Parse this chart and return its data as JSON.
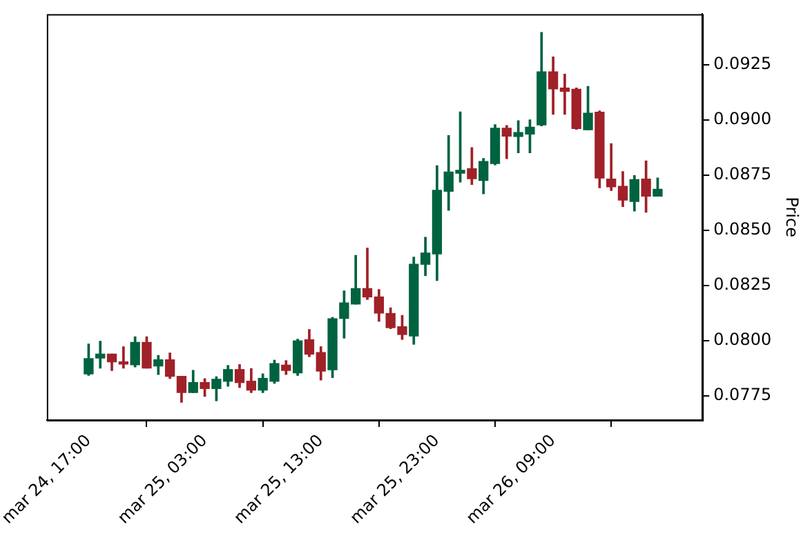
{
  "chart_data": {
    "type": "candlestick",
    "ylabel": "Price",
    "categories": [
      "mar 24, 17:00",
      null,
      null,
      null,
      null,
      null,
      null,
      null,
      null,
      null,
      "mar 25, 03:00",
      null,
      null,
      null,
      null,
      null,
      null,
      null,
      null,
      null,
      "mar 25, 13:00",
      null,
      null,
      null,
      null,
      null,
      null,
      null,
      null,
      null,
      "mar 25, 23:00",
      null,
      null,
      null,
      null,
      null,
      null,
      null,
      null,
      null,
      "mar 26, 09:00",
      null,
      null,
      null,
      null,
      null,
      null,
      null,
      null,
      null
    ],
    "ohlc": [
      [
        0.07849,
        0.07984,
        0.07843,
        0.07919
      ],
      [
        0.07921,
        0.07997,
        0.07876,
        0.07939
      ],
      [
        0.07939,
        0.07939,
        0.07865,
        0.07904
      ],
      [
        0.07904,
        0.07972,
        0.07876,
        0.07894
      ],
      [
        0.07891,
        0.08017,
        0.07881,
        0.07992
      ],
      [
        0.07992,
        0.08017,
        0.07876,
        0.07876
      ],
      [
        0.07885,
        0.07933,
        0.07847,
        0.07913
      ],
      [
        0.07913,
        0.07944,
        0.07829,
        0.07838
      ],
      [
        0.07838,
        0.07838,
        0.07721,
        0.07765
      ],
      [
        0.07765,
        0.07865,
        0.07765,
        0.0781
      ],
      [
        0.0781,
        0.07827,
        0.07748,
        0.07783
      ],
      [
        0.07783,
        0.07836,
        0.07728,
        0.07825
      ],
      [
        0.07816,
        0.07887,
        0.07794,
        0.07869
      ],
      [
        0.07869,
        0.07891,
        0.07788,
        0.0781
      ],
      [
        0.07816,
        0.07873,
        0.07765,
        0.07776
      ],
      [
        0.07776,
        0.07849,
        0.07765,
        0.07829
      ],
      [
        0.07816,
        0.07911,
        0.07807,
        0.07896
      ],
      [
        0.07889,
        0.07909,
        0.07847,
        0.07865
      ],
      [
        0.07854,
        0.08006,
        0.07843,
        0.07999
      ],
      [
        0.08004,
        0.0805,
        0.07928,
        0.07939
      ],
      [
        0.07946,
        0.07972,
        0.07822,
        0.07862
      ],
      [
        0.07868,
        0.08105,
        0.07833,
        0.08099
      ],
      [
        0.08101,
        0.08225,
        0.08012,
        0.08171
      ],
      [
        0.08166,
        0.08386,
        0.08166,
        0.08236
      ],
      [
        0.08236,
        0.08419,
        0.08187,
        0.08198
      ],
      [
        0.08198,
        0.08231,
        0.08088,
        0.08125
      ],
      [
        0.08123,
        0.08148,
        0.08055,
        0.08059
      ],
      [
        0.08063,
        0.08114,
        0.08006,
        0.08028
      ],
      [
        0.08021,
        0.08378,
        0.07984,
        0.08346
      ],
      [
        0.08346,
        0.08468,
        0.08295,
        0.08397
      ],
      [
        0.08393,
        0.08792,
        0.08273,
        0.08681
      ],
      [
        0.08677,
        0.08929,
        0.08591,
        0.08764
      ],
      [
        0.08759,
        0.09036,
        0.08719,
        0.08772
      ],
      [
        0.08779,
        0.08874,
        0.08708,
        0.08734
      ],
      [
        0.08726,
        0.08825,
        0.08666,
        0.08812
      ],
      [
        0.08803,
        0.08978,
        0.08797,
        0.08963
      ],
      [
        0.08963,
        0.08974,
        0.08825,
        0.08927
      ],
      [
        0.08925,
        0.08996,
        0.08852,
        0.08943
      ],
      [
        0.08936,
        0.09,
        0.08852,
        0.08967
      ],
      [
        0.08978,
        0.09396,
        0.08974,
        0.09218
      ],
      [
        0.09218,
        0.09285,
        0.09026,
        0.09141
      ],
      [
        0.09145,
        0.09207,
        0.09026,
        0.0913
      ],
      [
        0.09139,
        0.09145,
        0.08958,
        0.08961
      ],
      [
        0.08956,
        0.09152,
        0.08956,
        0.09031
      ],
      [
        0.09035,
        0.09041,
        0.08693,
        0.08737
      ],
      [
        0.08732,
        0.08892,
        0.08681,
        0.08697
      ],
      [
        0.08699,
        0.08766,
        0.08608,
        0.08637
      ],
      [
        0.08631,
        0.08748,
        0.08588,
        0.0873
      ],
      [
        0.08732,
        0.08814,
        0.08582,
        0.08655
      ],
      [
        0.08655,
        0.08737,
        0.08655,
        0.08686
      ]
    ],
    "colors": [
      "#006340",
      "#006340",
      "#a02128",
      "#a02128",
      "#006340",
      "#a02128",
      "#006340",
      "#a02128",
      "#a02128",
      "#006340",
      "#a02128",
      "#006340",
      "#006340",
      "#a02128",
      "#a02128",
      "#006340",
      "#006340",
      "#a02128",
      "#006340",
      "#a02128",
      "#a02128",
      "#006340",
      "#006340",
      "#006340",
      "#a02128",
      "#a02128",
      "#a02128",
      "#a02128",
      "#006340",
      "#006340",
      "#006340",
      "#006340",
      "#006340",
      "#a02128",
      "#006340",
      "#006340",
      "#a02128",
      "#006340",
      "#006340",
      "#006340",
      "#a02128",
      "#a02128",
      "#a02128",
      "#006340",
      "#a02128",
      "#a02128",
      "#a02128",
      "#006340",
      "#a02128",
      "#006340"
    ],
    "ylim": [
      0.0764,
      0.0948
    ],
    "yticks": [
      {
        "value": 0.0775,
        "label": "0.0775"
      },
      {
        "value": 0.08,
        "label": "0.0800"
      },
      {
        "value": 0.0825,
        "label": "0.0825"
      },
      {
        "value": 0.085,
        "label": "0.0850"
      },
      {
        "value": 0.0875,
        "label": "0.0875"
      },
      {
        "value": 0.09,
        "label": "0.0900"
      },
      {
        "value": 0.0925,
        "label": "0.0925"
      }
    ]
  }
}
